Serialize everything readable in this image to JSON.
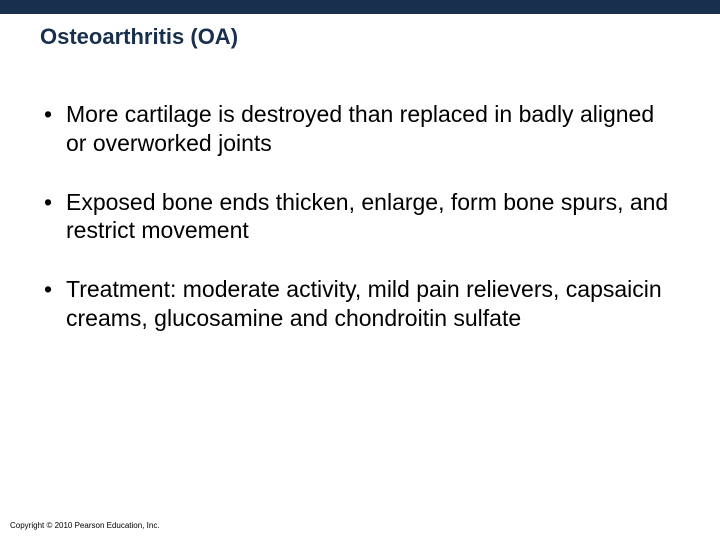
{
  "slide": {
    "title": "Osteoarthritis (OA)",
    "topbar_color": "#18304e",
    "title_color": "#18304e",
    "title_fontsize": 22,
    "body_fontsize": 23,
    "body_color": "#000000",
    "background_color": "#ffffff",
    "bullets": [
      "More cartilage is destroyed than replaced in badly aligned or overworked joints",
      "Exposed bone ends thicken, enlarge, form bone spurs, and restrict movement",
      "Treatment: moderate activity, mild pain relievers, capsaicin creams, glucosamine and chondroitin sulfate"
    ],
    "bullet_marker": "•",
    "copyright": "Copyright © 2010 Pearson Education, Inc."
  }
}
